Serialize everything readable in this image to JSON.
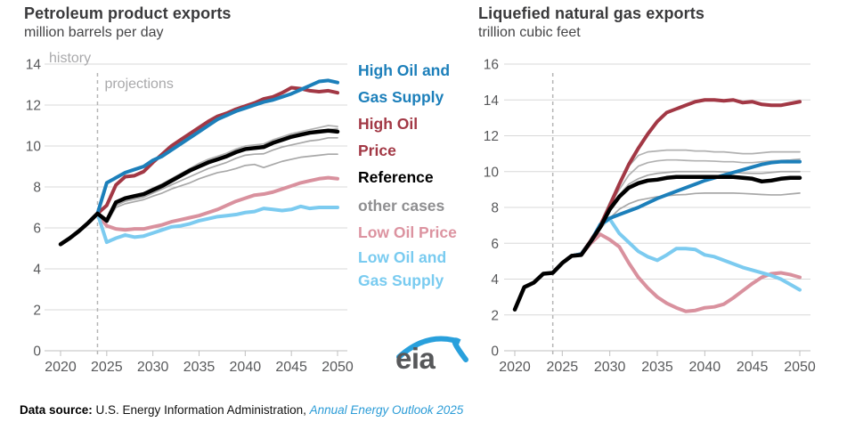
{
  "footer": {
    "label": "Data source:",
    "text": " U.S. Energy Information Administration, ",
    "link": "Annual Energy Outlook 2025"
  },
  "logo": {
    "text": "eia",
    "swoosh_color": "#29a0dc"
  },
  "legend": {
    "lines": [
      {
        "text": "High Oil and",
        "color": "#1c7fba"
      },
      {
        "text": "Gas Supply",
        "color": "#1c7fba"
      },
      {
        "text": "High Oil",
        "color": "#a23845"
      },
      {
        "text": "Price",
        "color": "#a23845"
      },
      {
        "text": "Reference",
        "color": "#000000"
      },
      {
        "text": "other cases",
        "color": "#8f8f91"
      },
      {
        "text": "Low Oil Price",
        "color": "#dc93a0"
      },
      {
        "text": "Low Oil and",
        "color": "#79cbf0"
      },
      {
        "text": "Gas Supply",
        "color": "#79cbf0"
      }
    ]
  },
  "chart_data": [
    {
      "id": "petroleum",
      "type": "line",
      "title": "Petroleum product exports",
      "subtitle": "million barrels per day",
      "ylim": [
        0,
        14
      ],
      "yticks": [
        0,
        2,
        4,
        6,
        8,
        10,
        12,
        14
      ],
      "xticks": [
        2020,
        2025,
        2030,
        2035,
        2040,
        2045,
        2050
      ],
      "years": [
        2020,
        2021,
        2022,
        2023,
        2024,
        2025,
        2026,
        2027,
        2028,
        2029,
        2030,
        2031,
        2032,
        2033,
        2034,
        2035,
        2036,
        2037,
        2038,
        2039,
        2040,
        2041,
        2042,
        2043,
        2044,
        2045,
        2046,
        2047,
        2048,
        2049,
        2050
      ],
      "divider_year": 2024,
      "annotations": {
        "history": "history",
        "projections": "projections"
      },
      "grid": true,
      "legend_position": "right-of-chart",
      "series": [
        {
          "name": "other case A",
          "color": "#b1b1b1",
          "width": 1.7,
          "values": [
            null,
            null,
            null,
            null,
            6.7,
            6.4,
            7.3,
            7.5,
            7.6,
            7.7,
            7.95,
            8.15,
            8.4,
            8.65,
            8.9,
            9.15,
            9.35,
            9.5,
            9.65,
            9.85,
            10.0,
            10.05,
            10.1,
            10.3,
            10.45,
            10.6,
            10.7,
            10.8,
            10.9,
            11.0,
            10.95
          ]
        },
        {
          "name": "other case B",
          "color": "#b1b1b1",
          "width": 1.7,
          "values": [
            null,
            null,
            null,
            null,
            6.7,
            6.35,
            7.2,
            7.42,
            7.52,
            7.62,
            7.85,
            8.05,
            8.28,
            8.5,
            8.75,
            9.0,
            9.2,
            9.38,
            9.52,
            9.72,
            9.85,
            9.9,
            9.95,
            10.15,
            10.3,
            10.45,
            10.55,
            10.65,
            10.72,
            10.8,
            10.85
          ]
        },
        {
          "name": "other case C",
          "color": "#a8a8a8",
          "width": 1.7,
          "values": [
            null,
            null,
            null,
            null,
            6.7,
            6.3,
            7.1,
            7.3,
            7.4,
            7.5,
            7.7,
            7.9,
            8.1,
            8.3,
            8.5,
            8.7,
            8.9,
            9.05,
            9.2,
            9.4,
            9.55,
            9.6,
            9.62,
            9.8,
            9.95,
            10.05,
            10.15,
            10.25,
            10.3,
            10.4,
            10.4
          ]
        },
        {
          "name": "other case D",
          "color": "#a8a8a8",
          "width": 1.7,
          "values": [
            null,
            null,
            null,
            null,
            6.7,
            6.25,
            7.0,
            7.18,
            7.28,
            7.38,
            7.55,
            7.7,
            7.9,
            8.05,
            8.2,
            8.4,
            8.55,
            8.7,
            8.78,
            8.9,
            9.05,
            9.1,
            8.95,
            9.1,
            9.25,
            9.35,
            9.45,
            9.5,
            9.55,
            9.6,
            9.6
          ]
        },
        {
          "name": "Low Oil Price",
          "color": "#d9919e",
          "width": 4,
          "values": [
            null,
            null,
            null,
            null,
            6.7,
            6.1,
            5.95,
            5.9,
            5.95,
            5.95,
            6.05,
            6.15,
            6.3,
            6.4,
            6.5,
            6.6,
            6.75,
            6.9,
            7.1,
            7.3,
            7.45,
            7.6,
            7.65,
            7.75,
            7.9,
            8.05,
            8.2,
            8.3,
            8.4,
            8.45,
            8.4
          ]
        },
        {
          "name": "Low Oil and Gas Supply",
          "color": "#7ccbf0",
          "width": 4,
          "values": [
            null,
            null,
            null,
            null,
            6.7,
            5.3,
            5.5,
            5.65,
            5.55,
            5.6,
            5.75,
            5.9,
            6.05,
            6.1,
            6.2,
            6.35,
            6.45,
            6.55,
            6.6,
            6.65,
            6.75,
            6.8,
            6.95,
            6.9,
            6.85,
            6.9,
            7.05,
            6.95,
            7.0,
            7.0,
            7.0
          ]
        },
        {
          "name": "High Oil Price",
          "color": "#a23845",
          "width": 4,
          "values": [
            null,
            null,
            null,
            null,
            6.7,
            7.1,
            8.1,
            8.5,
            8.55,
            8.75,
            9.2,
            9.6,
            10.0,
            10.3,
            10.6,
            10.9,
            11.2,
            11.45,
            11.6,
            11.8,
            11.95,
            12.1,
            12.3,
            12.4,
            12.6,
            12.85,
            12.8,
            12.7,
            12.65,
            12.7,
            12.6
          ]
        },
        {
          "name": "High Oil and Gas Supply",
          "color": "#1c7fba",
          "width": 4,
          "values": [
            null,
            null,
            null,
            null,
            6.7,
            8.2,
            8.45,
            8.7,
            8.85,
            9.0,
            9.3,
            9.5,
            9.8,
            10.1,
            10.4,
            10.7,
            11.0,
            11.3,
            11.5,
            11.7,
            11.85,
            12.0,
            12.15,
            12.25,
            12.4,
            12.55,
            12.75,
            12.95,
            13.15,
            13.2,
            13.1
          ]
        },
        {
          "name": "Reference",
          "color": "#000000",
          "width": 4.5,
          "values": [
            5.2,
            5.5,
            5.85,
            6.25,
            6.7,
            6.35,
            7.25,
            7.45,
            7.55,
            7.65,
            7.85,
            8.05,
            8.3,
            8.55,
            8.8,
            9.0,
            9.2,
            9.35,
            9.5,
            9.7,
            9.85,
            9.9,
            9.95,
            10.15,
            10.3,
            10.45,
            10.55,
            10.65,
            10.7,
            10.75,
            10.7
          ]
        }
      ]
    },
    {
      "id": "lng",
      "type": "line",
      "title": "Liquefied natural gas exports",
      "subtitle": "trillion cubic feet",
      "ylim": [
        0,
        16
      ],
      "yticks": [
        0,
        2,
        4,
        6,
        8,
        10,
        12,
        14,
        16
      ],
      "xticks": [
        2020,
        2025,
        2030,
        2035,
        2040,
        2045,
        2050
      ],
      "years": [
        2020,
        2021,
        2022,
        2023,
        2024,
        2025,
        2026,
        2027,
        2028,
        2029,
        2030,
        2031,
        2032,
        2033,
        2034,
        2035,
        2036,
        2037,
        2038,
        2039,
        2040,
        2041,
        2042,
        2043,
        2044,
        2045,
        2046,
        2047,
        2048,
        2049,
        2050
      ],
      "divider_year": 2024,
      "annotations": null,
      "grid": true,
      "series": [
        {
          "name": "other case A",
          "color": "#b1b1b1",
          "width": 1.7,
          "values": [
            null,
            null,
            null,
            null,
            4.35,
            4.9,
            5.3,
            5.4,
            6.15,
            7.1,
            8.3,
            9.4,
            10.3,
            10.9,
            11.1,
            11.15,
            11.2,
            11.2,
            11.2,
            11.15,
            11.15,
            11.1,
            11.1,
            11.05,
            11.0,
            11.0,
            11.05,
            11.1,
            11.1,
            11.1,
            11.1
          ]
        },
        {
          "name": "other case B",
          "color": "#b1b1b1",
          "width": 1.7,
          "values": [
            null,
            null,
            null,
            null,
            4.35,
            4.9,
            5.3,
            5.38,
            6.1,
            7.0,
            8.1,
            9.0,
            9.8,
            10.3,
            10.5,
            10.6,
            10.65,
            10.65,
            10.62,
            10.6,
            10.6,
            10.58,
            10.55,
            10.55,
            10.5,
            10.5,
            10.55,
            10.6,
            10.62,
            10.65,
            10.7
          ]
        },
        {
          "name": "other case C",
          "color": "#a8a8a8",
          "width": 1.7,
          "values": [
            null,
            null,
            null,
            null,
            4.35,
            4.9,
            5.3,
            5.36,
            6.05,
            6.95,
            7.9,
            8.7,
            9.3,
            9.6,
            9.8,
            9.9,
            9.95,
            10.0,
            10.0,
            10.0,
            10.0,
            10.0,
            9.98,
            9.95,
            9.92,
            9.9,
            9.9,
            9.95,
            10.0,
            10.0,
            10.0
          ]
        },
        {
          "name": "other case D",
          "color": "#a8a8a8",
          "width": 1.7,
          "values": [
            null,
            null,
            null,
            null,
            4.35,
            4.9,
            5.3,
            5.35,
            6.0,
            6.8,
            7.4,
            7.9,
            8.2,
            8.4,
            8.5,
            8.6,
            8.65,
            8.7,
            8.72,
            8.78,
            8.8,
            8.8,
            8.8,
            8.8,
            8.78,
            8.75,
            8.72,
            8.7,
            8.7,
            8.75,
            8.8
          ]
        },
        {
          "name": "Low Oil Price",
          "color": "#d9919e",
          "width": 4,
          "values": [
            null,
            null,
            null,
            null,
            4.35,
            4.9,
            5.3,
            5.35,
            6.0,
            6.5,
            6.2,
            5.8,
            4.9,
            4.1,
            3.5,
            3.0,
            2.65,
            2.4,
            2.2,
            2.25,
            2.4,
            2.45,
            2.6,
            2.95,
            3.35,
            3.75,
            4.1,
            4.3,
            4.35,
            4.25,
            4.1
          ]
        },
        {
          "name": "Low Oil and Gas Supply",
          "color": "#7ccbf0",
          "width": 4,
          "values": [
            null,
            null,
            null,
            null,
            4.35,
            4.9,
            5.3,
            5.4,
            6.1,
            7.0,
            7.35,
            6.55,
            6.05,
            5.55,
            5.25,
            5.05,
            5.35,
            5.7,
            5.7,
            5.65,
            5.35,
            5.25,
            5.05,
            4.85,
            4.65,
            4.5,
            4.35,
            4.2,
            4.0,
            3.7,
            3.4
          ]
        },
        {
          "name": "High Oil Price",
          "color": "#a23845",
          "width": 4,
          "values": [
            null,
            null,
            null,
            null,
            4.35,
            4.9,
            5.3,
            5.4,
            6.15,
            7.0,
            8.1,
            9.3,
            10.4,
            11.3,
            12.1,
            12.8,
            13.3,
            13.5,
            13.7,
            13.9,
            14.0,
            14.0,
            13.95,
            14.0,
            13.85,
            13.9,
            13.75,
            13.7,
            13.7,
            13.8,
            13.9
          ]
        },
        {
          "name": "High Oil and Gas Supply",
          "color": "#1c7fba",
          "width": 4,
          "values": [
            null,
            null,
            null,
            null,
            4.35,
            4.9,
            5.3,
            5.4,
            6.1,
            7.05,
            7.4,
            7.6,
            7.8,
            8.0,
            8.25,
            8.5,
            8.7,
            8.9,
            9.1,
            9.3,
            9.5,
            9.65,
            9.8,
            9.95,
            10.1,
            10.25,
            10.4,
            10.5,
            10.55,
            10.55,
            10.55
          ]
        },
        {
          "name": "Reference",
          "color": "#000000",
          "width": 4.5,
          "values": [
            2.3,
            3.55,
            3.8,
            4.3,
            4.35,
            4.9,
            5.3,
            5.35,
            6.1,
            6.9,
            7.9,
            8.6,
            9.1,
            9.35,
            9.5,
            9.55,
            9.65,
            9.7,
            9.7,
            9.7,
            9.7,
            9.7,
            9.7,
            9.7,
            9.65,
            9.6,
            9.45,
            9.5,
            9.6,
            9.65,
            9.65
          ]
        }
      ]
    }
  ]
}
